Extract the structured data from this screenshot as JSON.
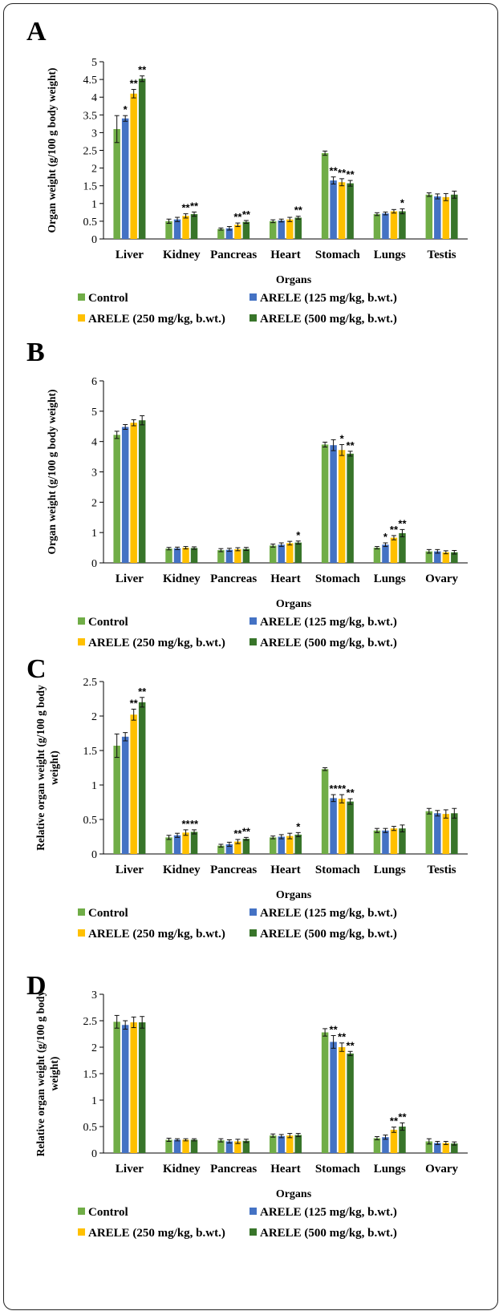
{
  "colors": {
    "control": "#70ad47",
    "arele125": "#4472c4",
    "arele250": "#ffc000",
    "arele500": "#38752a"
  },
  "legend": [
    "Control",
    "ARELE (125 mg/kg, b.wt.)",
    "ARELE (250 mg/kg, b.wt.)",
    "ARELE (500 mg/kg, b.wt.)"
  ],
  "chart_data": [
    {
      "panel": "A",
      "type": "bar",
      "xlabel": "Organs",
      "ylabel": [
        "Organ weight (g/100 g body weight)"
      ],
      "ylim": [
        0,
        5
      ],
      "yticks": [
        "0",
        "0.5",
        "1",
        "1.5",
        "2",
        "2.5",
        "3",
        "3.5",
        "4",
        "4.5",
        "5"
      ],
      "categories": [
        "Liver",
        "Kidney",
        "Pancreas",
        "Heart",
        "Stomach",
        "Lungs",
        "Testis"
      ],
      "series": [
        {
          "name": "Control",
          "values": [
            3.1,
            0.5,
            0.28,
            0.5,
            2.42,
            0.7,
            1.25
          ],
          "errors": [
            0.38,
            0.06,
            0.03,
            0.04,
            0.06,
            0.04,
            0.05
          ],
          "sig": [
            "",
            "",
            "",
            "",
            "",
            "",
            ""
          ]
        },
        {
          "name": "ARELE (125 mg/kg, b.wt.)",
          "values": [
            3.4,
            0.55,
            0.3,
            0.52,
            1.65,
            0.72,
            1.2
          ],
          "errors": [
            0.08,
            0.06,
            0.05,
            0.04,
            0.1,
            0.04,
            0.07
          ],
          "sig": [
            "*",
            "",
            "",
            "",
            "**",
            "",
            ""
          ]
        },
        {
          "name": "ARELE (250 mg/kg, b.wt.)",
          "values": [
            4.1,
            0.65,
            0.4,
            0.55,
            1.6,
            0.78,
            1.18
          ],
          "errors": [
            0.12,
            0.06,
            0.05,
            0.06,
            0.1,
            0.05,
            0.1
          ],
          "sig": [
            "**",
            "**",
            "**",
            "",
            "**",
            "",
            ""
          ]
        },
        {
          "name": "ARELE (500 mg/kg, b.wt.)",
          "values": [
            4.52,
            0.7,
            0.48,
            0.6,
            1.57,
            0.78,
            1.25
          ],
          "errors": [
            0.08,
            0.06,
            0.04,
            0.04,
            0.08,
            0.07,
            0.1
          ],
          "sig": [
            "**",
            "**",
            "**",
            "**",
            "**",
            "*",
            ""
          ]
        }
      ]
    },
    {
      "panel": "B",
      "type": "bar",
      "xlabel": "Organs",
      "ylabel": [
        "Organ weight (g/100 g body weight)"
      ],
      "ylim": [
        0,
        6
      ],
      "yticks": [
        "0",
        "1",
        "2",
        "3",
        "4",
        "5",
        "6"
      ],
      "categories": [
        "Liver",
        "Kidney",
        "Pancreas",
        "Heart",
        "Stomach",
        "Lungs",
        "Ovary"
      ],
      "series": [
        {
          "name": "Control",
          "values": [
            4.22,
            0.47,
            0.42,
            0.57,
            3.9,
            0.5,
            0.38
          ],
          "errors": [
            0.12,
            0.04,
            0.05,
            0.05,
            0.08,
            0.04,
            0.06
          ],
          "sig": [
            "",
            "",
            "",
            "",
            "",
            "",
            ""
          ]
        },
        {
          "name": "ARELE (125 mg/kg, b.wt.)",
          "values": [
            4.48,
            0.48,
            0.43,
            0.6,
            3.88,
            0.6,
            0.38
          ],
          "errors": [
            0.08,
            0.04,
            0.05,
            0.06,
            0.18,
            0.06,
            0.06
          ],
          "sig": [
            "",
            "",
            "",
            "",
            "",
            "*",
            ""
          ]
        },
        {
          "name": "ARELE (250 mg/kg, b.wt.)",
          "values": [
            4.62,
            0.5,
            0.45,
            0.65,
            3.72,
            0.83,
            0.35
          ],
          "errors": [
            0.1,
            0.04,
            0.05,
            0.06,
            0.18,
            0.07,
            0.05
          ],
          "sig": [
            "",
            "",
            "",
            "",
            "*",
            "**",
            ""
          ]
        },
        {
          "name": "ARELE (500 mg/kg, b.wt.)",
          "values": [
            4.7,
            0.49,
            0.46,
            0.67,
            3.6,
            0.98,
            0.35
          ],
          "errors": [
            0.15,
            0.04,
            0.05,
            0.05,
            0.08,
            0.12,
            0.06
          ],
          "sig": [
            "",
            "",
            "",
            "*",
            "**",
            "**",
            ""
          ]
        }
      ]
    },
    {
      "panel": "C",
      "type": "bar",
      "xlabel": "Organs",
      "ylabel": [
        "Relative organ weight (g/100 g body",
        "weight)"
      ],
      "ylim": [
        0,
        2.5
      ],
      "yticks": [
        "0",
        "0.5",
        "1",
        "1.5",
        "2",
        "2.5"
      ],
      "categories": [
        "Liver",
        "Kidney",
        "Pancreas",
        "Heart",
        "Stomach",
        "Lungs",
        "Testis"
      ],
      "series": [
        {
          "name": "Control",
          "values": [
            1.57,
            0.24,
            0.12,
            0.24,
            1.23,
            0.34,
            0.62
          ],
          "errors": [
            0.17,
            0.03,
            0.02,
            0.02,
            0.02,
            0.03,
            0.04
          ],
          "sig": [
            "",
            "",
            "",
            "",
            "",
            "",
            ""
          ]
        },
        {
          "name": "ARELE (125 mg/kg, b.wt.)",
          "values": [
            1.7,
            0.27,
            0.14,
            0.25,
            0.81,
            0.34,
            0.59
          ],
          "errors": [
            0.06,
            0.03,
            0.03,
            0.03,
            0.05,
            0.03,
            0.04
          ],
          "sig": [
            "",
            "",
            "",
            "",
            "**",
            "",
            ""
          ]
        },
        {
          "name": "ARELE (250 mg/kg, b.wt.)",
          "values": [
            2.02,
            0.31,
            0.18,
            0.26,
            0.8,
            0.37,
            0.58
          ],
          "errors": [
            0.08,
            0.04,
            0.03,
            0.04,
            0.06,
            0.03,
            0.06
          ],
          "sig": [
            "**",
            "**",
            "**",
            "",
            "**",
            "",
            ""
          ]
        },
        {
          "name": "ARELE (500 mg/kg, b.wt.)",
          "values": [
            2.2,
            0.32,
            0.22,
            0.28,
            0.76,
            0.37,
            0.59
          ],
          "errors": [
            0.07,
            0.03,
            0.02,
            0.03,
            0.04,
            0.05,
            0.07
          ],
          "sig": [
            "**",
            "**",
            "**",
            "*",
            "**",
            "",
            ""
          ]
        }
      ]
    },
    {
      "panel": "D",
      "type": "bar",
      "xlabel": "Organs",
      "ylabel": [
        "Relative organ weight (g/100 g body",
        "weight)"
      ],
      "ylim": [
        0,
        3
      ],
      "yticks": [
        "0",
        "0.5",
        "1",
        "1.5",
        "2",
        "2.5",
        "3"
      ],
      "categories": [
        "Liver",
        "Kidney",
        "Pancreas",
        "Heart",
        "Stomach",
        "Lungs",
        "Ovary"
      ],
      "series": [
        {
          "name": "Control",
          "values": [
            2.48,
            0.25,
            0.24,
            0.33,
            2.28,
            0.28,
            0.22
          ],
          "errors": [
            0.12,
            0.03,
            0.03,
            0.03,
            0.07,
            0.03,
            0.05
          ],
          "sig": [
            "",
            "",
            "",
            "",
            "",
            "",
            ""
          ]
        },
        {
          "name": "ARELE (125 mg/kg, b.wt.)",
          "values": [
            2.42,
            0.25,
            0.22,
            0.32,
            2.1,
            0.3,
            0.19
          ],
          "errors": [
            0.08,
            0.02,
            0.03,
            0.03,
            0.12,
            0.04,
            0.03
          ],
          "sig": [
            "",
            "",
            "",
            "",
            "**",
            "",
            ""
          ]
        },
        {
          "name": "ARELE (250 mg/kg, b.wt.)",
          "values": [
            2.47,
            0.25,
            0.22,
            0.33,
            2.0,
            0.44,
            0.19
          ],
          "errors": [
            0.1,
            0.02,
            0.04,
            0.04,
            0.08,
            0.05,
            0.03
          ],
          "sig": [
            "",
            "",
            "",
            "",
            "**",
            "**",
            ""
          ]
        },
        {
          "name": "ARELE (500 mg/kg, b.wt.)",
          "values": [
            2.47,
            0.25,
            0.23,
            0.34,
            1.88,
            0.5,
            0.18
          ],
          "errors": [
            0.11,
            0.02,
            0.03,
            0.03,
            0.04,
            0.07,
            0.03
          ],
          "sig": [
            "",
            "",
            "",
            "",
            "**",
            "**",
            ""
          ]
        }
      ]
    }
  ]
}
